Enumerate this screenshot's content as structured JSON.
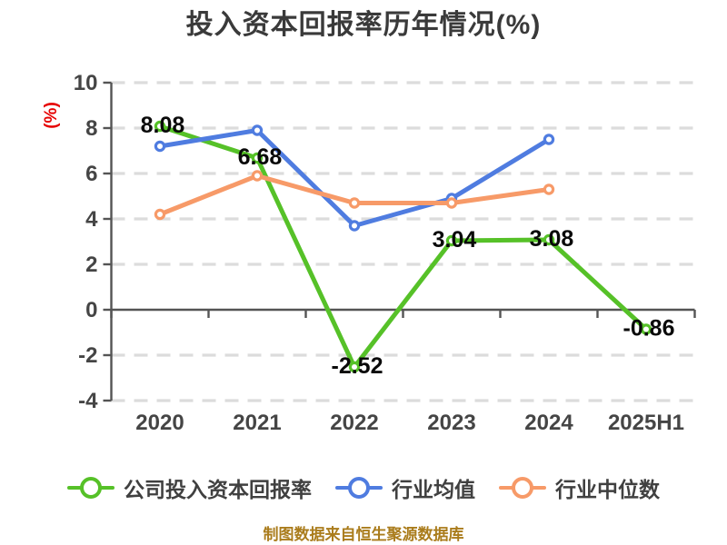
{
  "title": "投入资本回报率历年情况(%)",
  "footer_note": "制图数据来自恒生聚源数据库",
  "colors": {
    "background": "#ffffff",
    "title_text": "#3a3a3a",
    "grid": "#dcdcdc",
    "axis": "#545454",
    "tick_label": "#454545",
    "data_label": "#0a0a0a",
    "ylabel_red": "#e60000",
    "legend_text": "#404040",
    "footer_gold": "#aa7c1c",
    "series_green": "#56c128",
    "series_blue": "#4f7ce0",
    "series_orange": "#f79a68"
  },
  "chart_data": {
    "type": "line",
    "title": "投入资本回报率历年情况(%)",
    "xlabel": "",
    "ylabel": "(%)",
    "categories": [
      "2020",
      "2021",
      "2022",
      "2023",
      "2024",
      "2025H1"
    ],
    "ylim": [
      -4,
      10
    ],
    "yticks": [
      10,
      8,
      6,
      4,
      2,
      0,
      -2,
      -4
    ],
    "grid": "horizontal-dashed",
    "legend_position": "bottom",
    "series": [
      {
        "name": "公司投入资本回报率",
        "color": "#56c128",
        "values": [
          8.08,
          6.68,
          -2.52,
          3.04,
          3.08,
          -0.86
        ],
        "labels": [
          "8.08",
          "6.68",
          "-2.52",
          "3.04",
          "3.08",
          "-0.86"
        ]
      },
      {
        "name": "行业均值",
        "color": "#4f7ce0",
        "values": [
          7.2,
          7.9,
          3.7,
          4.9,
          7.5,
          null
        ]
      },
      {
        "name": "行业中位数",
        "color": "#f79a68",
        "values": [
          4.2,
          5.9,
          4.7,
          4.7,
          5.3,
          null
        ]
      }
    ]
  }
}
